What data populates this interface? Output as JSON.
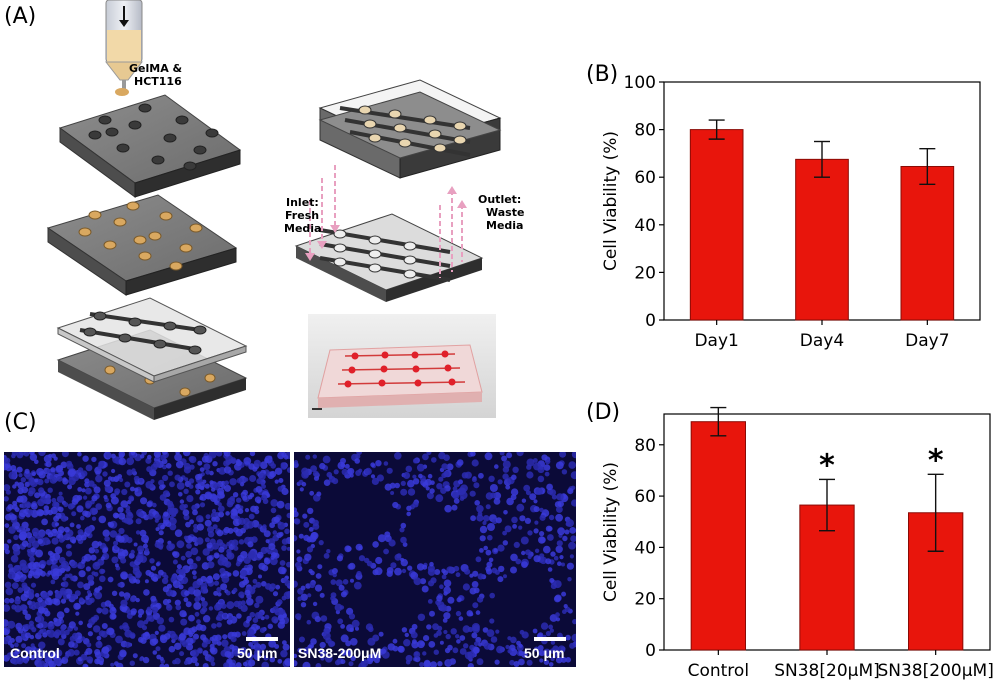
{
  "panels": {
    "a": "(A)",
    "b": "(B)",
    "c": "(C)",
    "d": "(D)"
  },
  "schematic": {
    "syringe_label_1": "GelMA &",
    "syringe_label_2": "HCT116",
    "inlet_1": "Inlet:",
    "inlet_2": "Fresh",
    "inlet_3": "Media",
    "outlet_1": "Outlet:",
    "outlet_2": "Waste",
    "outlet_3": "Media"
  },
  "micrographs": {
    "left_label": "Control",
    "right_label": "SN38-200μM",
    "scale": "50 μm"
  },
  "colors": {
    "bar": "#e8150c",
    "bar_edge": "#8a0a05",
    "nuclei": "#3a3ad8",
    "micro_bg": "#0b0a38"
  },
  "chart_data": [
    {
      "type": "bar",
      "categories": [
        "Day1",
        "Day4",
        "Day7"
      ],
      "values": [
        80,
        67.5,
        64.5
      ],
      "errors": [
        4,
        7.5,
        7.5
      ],
      "ylabel": "Cell Viability (%)",
      "ylim": [
        0,
        100
      ],
      "yticks": [
        "0",
        "20",
        "40",
        "60",
        "80",
        "100"
      ],
      "significance": [
        "",
        "",
        ""
      ]
    },
    {
      "type": "bar",
      "categories": [
        "Control",
        "SN38[20μM]",
        "SN38[200μM]"
      ],
      "values": [
        89,
        56.5,
        53.5
      ],
      "errors": [
        5.5,
        10,
        15
      ],
      "ylabel": "Cell Viability (%)",
      "ylim": [
        0,
        92
      ],
      "yticks": [
        "0",
        "20",
        "40",
        "60",
        "80"
      ],
      "significance": [
        "",
        "*",
        "*"
      ]
    }
  ]
}
